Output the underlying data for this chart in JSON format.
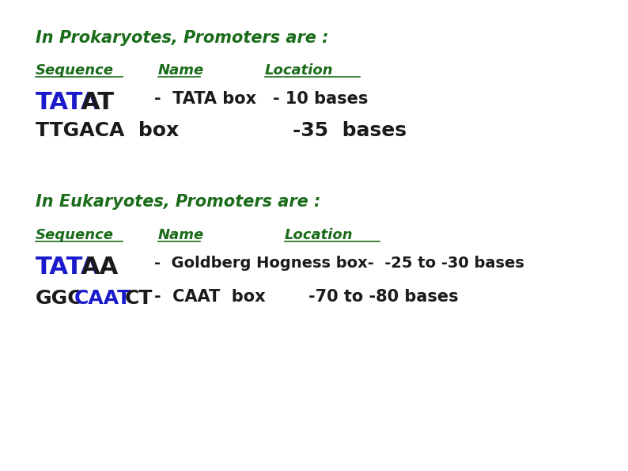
{
  "bg_color": "#ffffff",
  "green": "#1a6b1a",
  "blue": "#1a1acc",
  "black": "#1a1a1a",
  "title1": "In Prokaryotes, Promoters are :",
  "title2": "In Eukaryotes, Promoters are :",
  "figw": 7.94,
  "figh": 5.95,
  "dpi": 100
}
